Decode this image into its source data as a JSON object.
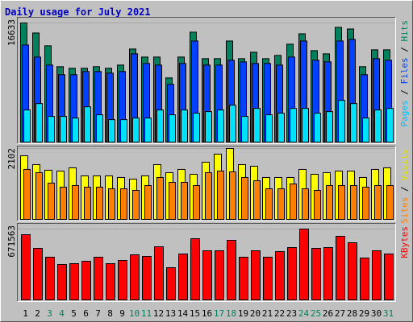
{
  "chart_data": {
    "type": "bar",
    "title": "Daily usage for July 2021",
    "categories": [
      "1",
      "2",
      "3",
      "4",
      "5",
      "6",
      "7",
      "8",
      "9",
      "10",
      "11",
      "12",
      "13",
      "14",
      "15",
      "16",
      "17",
      "18",
      "19",
      "20",
      "21",
      "22",
      "23",
      "24",
      "25",
      "26",
      "27",
      "28",
      "29",
      "30",
      "31"
    ],
    "category_colors": [
      "#000000",
      "#000000",
      "#00805c",
      "#00805c",
      "#000000",
      "#000000",
      "#000000",
      "#000000",
      "#000000",
      "#00805c",
      "#00805c",
      "#000000",
      "#000000",
      "#000000",
      "#000000",
      "#000000",
      "#00805c",
      "#00805c",
      "#000000",
      "#000000",
      "#000000",
      "#000000",
      "#000000",
      "#00805c",
      "#00805c",
      "#000000",
      "#000000",
      "#000000",
      "#000000",
      "#000000",
      "#00805c"
    ],
    "legend_separator": " / ",
    "panels": [
      {
        "ylim": [
          0,
          16633
        ],
        "yticks": [
          16633
        ],
        "series": [
          {
            "name": "Hits",
            "color": "#00805c",
            "label_color": "#00805c",
            "values": [
              16633,
              15232,
              13440,
              10528,
              10304,
              10304,
              10528,
              10304,
              10752,
              12992,
              11872,
              11872,
              8960,
              11872,
              15344,
              11648,
              11648,
              14112,
              11648,
              12544,
              11648,
              12096,
              13664,
              15120,
              12768,
              12320,
              16016,
              15792,
              10528,
              12880,
              12880
            ]
          },
          {
            "name": "Files",
            "color": "#0040ff",
            "label_color": "#0040ff",
            "values": [
              13552,
              11872,
              10752,
              9408,
              9408,
              9856,
              9856,
              9632,
              9856,
              12320,
              10976,
              10752,
              8064,
              10976,
              14112,
              10752,
              10752,
              11424,
              11200,
              10976,
              10976,
              10752,
              11872,
              14112,
              11424,
              11200,
              14112,
              14336,
              9408,
              11648,
              11424
            ]
          },
          {
            "name": "Pages",
            "color": "#00e0ff",
            "label_color": "#00c0ff",
            "values": [
              4480,
              5376,
              3584,
              3584,
              3360,
              4928,
              3808,
              3136,
              3136,
              3360,
              3360,
              4480,
              3808,
              4480,
              4032,
              4256,
              4480,
              5152,
              3584,
              4704,
              3808,
              4032,
              4704,
              4704,
              4032,
              4256,
              5824,
              5376,
              3360,
              4480,
              4704
            ]
          }
        ]
      },
      {
        "ylim": [
          0,
          2102
        ],
        "yticks": [
          2102
        ],
        "series": [
          {
            "name": "Visits",
            "color": "#ffff00",
            "label_color": "#e0e000",
            "values": [
              1888,
              1625,
              1458,
              1434,
              1530,
              1291,
              1291,
              1291,
              1243,
              1195,
              1291,
              1625,
              1386,
              1482,
              1338,
              1697,
              1936,
              2102,
              1625,
              1577,
              1243,
              1243,
              1243,
              1482,
              1338,
              1386,
              1434,
              1434,
              1243,
              1482,
              1530
            ]
          },
          {
            "name": "Sites",
            "color": "#ff8000",
            "label_color": "#ff8000",
            "values": [
              1482,
              1386,
              1076,
              956,
              1004,
              956,
              956,
              908,
              908,
              860,
              1004,
              1243,
              1099,
              1099,
              1004,
              1386,
              1434,
              1410,
              1243,
              1147,
              908,
              908,
              1052,
              908,
              860,
              1004,
              1004,
              1004,
              956,
              1004,
              1004
            ]
          }
        ]
      },
      {
        "ylim": [
          0,
          671563
        ],
        "yticks": [
          671563
        ],
        "series": [
          {
            "name": "KBytes",
            "color": "#ff0000",
            "label_color": "#ff0000",
            "values": [
              618111,
              488384,
              404443,
              335764,
              343395,
              366288,
              404443,
              343395,
              373919,
              427336,
              412074,
              503646,
              305240,
              434967,
              579956,
              465491,
              465491,
              564694,
              404443,
              465491,
              404443,
              457860,
              496015,
              671563,
              488384,
              496015,
              602849,
              541801,
              396812,
              465491,
              434967
            ]
          }
        ]
      }
    ]
  }
}
